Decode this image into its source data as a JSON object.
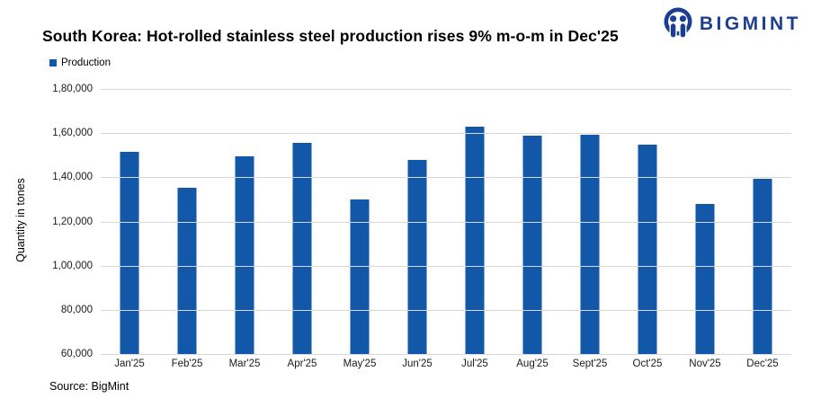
{
  "header": {
    "title": "South Korea: Hot-rolled stainless steel production rises 9% m-o-m in Dec'25",
    "brand": "BIGMINT"
  },
  "source": {
    "label": "Source: BigMint"
  },
  "colors": {
    "bar": "#1257a8",
    "brand_navy": "#1c3e90",
    "grid": "#d8d8d8",
    "title_text": "#000000"
  },
  "chart_data": {
    "type": "bar",
    "title": "South Korea: Hot-rolled stainless steel production rises 9% m-o-m in Dec'25",
    "categories": [
      "Jan'25",
      "Feb'25",
      "Mar'25",
      "Apr'25",
      "May'25",
      "Jun'25",
      "Jul'25",
      "Aug'25",
      "Sept'25",
      "Oct'25",
      "Nov'25",
      "Dec'25"
    ],
    "series": [
      {
        "name": "Production",
        "values": [
          151500,
          135200,
          149500,
          155800,
          130000,
          147700,
          162900,
          158900,
          159400,
          154900,
          127800,
          139300
        ]
      }
    ],
    "xlabel": "",
    "ylabel": "Quantity in tones",
    "ylim": [
      60000,
      180000
    ],
    "y_tick_step": 20000,
    "y_tick_labels": [
      "1,80,000",
      "1,60,000",
      "1,40,000",
      "1,20,000",
      "1,00,000",
      "80,000",
      "60,000"
    ],
    "grid": true,
    "legend_position": "top-left",
    "bar_color": "#1257a8"
  }
}
